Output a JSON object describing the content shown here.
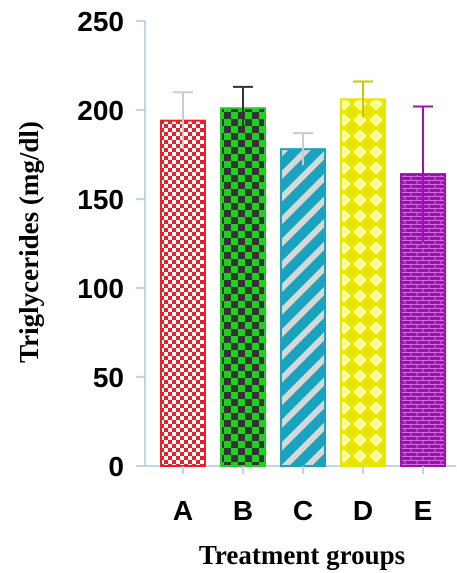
{
  "chart_data": {
    "type": "bar",
    "title": "",
    "xlabel": "Treatment groups",
    "ylabel": "Triglycerides (mg/dl)",
    "ylim": [
      0,
      250
    ],
    "yticks": [
      0,
      50,
      100,
      150,
      200,
      250
    ],
    "categories": [
      "A",
      "B",
      "C",
      "D",
      "E"
    ],
    "values": [
      194,
      201,
      178,
      206,
      164
    ],
    "errors": [
      16,
      12,
      9,
      10,
      38
    ],
    "colors": {
      "A": {
        "fill": "#e8202a",
        "error": "#cccccc"
      },
      "B": {
        "fill": "#1fd11f",
        "error": "#333333"
      },
      "C": {
        "fill": "#1aa3bf",
        "error": "#cccccc"
      },
      "D": {
        "fill": "#e6e600",
        "error": "#c8c800"
      },
      "E": {
        "fill": "#a010b0",
        "error": "#a010b0"
      }
    },
    "axis_color": "#a8c8e0",
    "grid": false,
    "legend": "none"
  }
}
